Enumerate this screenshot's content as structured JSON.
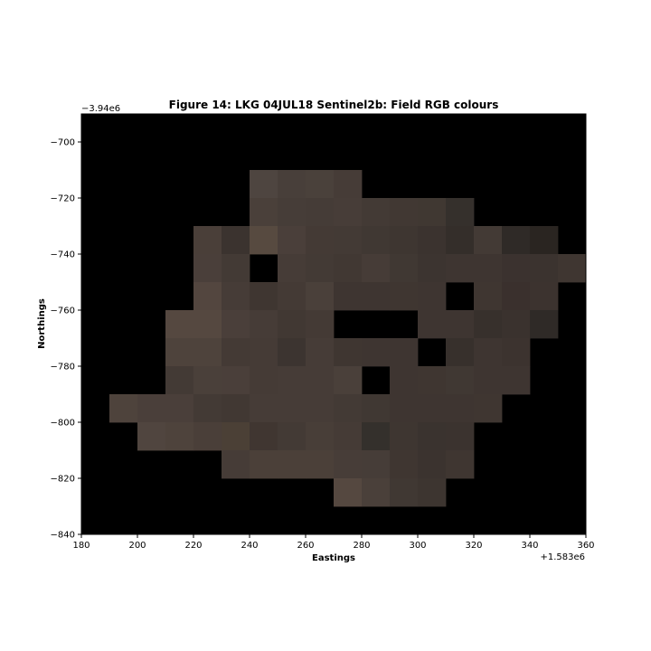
{
  "chart_data": {
    "type": "heatmap",
    "title": "Figure 14: LKG 04JUL18  Sentinel2b: Field RGB colours",
    "xlabel": "Eastings",
    "ylabel": "Northings",
    "x_offset_label": "+1.583e6",
    "y_offset_label": "−3.94e6",
    "xlim": [
      180,
      360
    ],
    "ylim": [
      -840,
      -690
    ],
    "xticks": [
      180,
      200,
      220,
      240,
      260,
      280,
      300,
      320,
      340,
      360
    ],
    "xtick_labels": [
      "180",
      "200",
      "220",
      "240",
      "260",
      "280",
      "300",
      "320",
      "340",
      "360"
    ],
    "yticks": [
      -700,
      -720,
      -740,
      -760,
      -780,
      -800,
      -820,
      -840
    ],
    "ytick_labels": [
      "−700",
      "−720",
      "−740",
      "−760",
      "−780",
      "−800",
      "−820",
      "−840"
    ],
    "cell_size": 10,
    "background_color": "#000000",
    "rows": [
      {
        "north": -710,
        "start": 240,
        "colors": [
          "#4e4540",
          "#483f3a",
          "#4a413b",
          "#463c37"
        ]
      },
      {
        "north": -720,
        "start": 240,
        "colors": [
          "#4a403a",
          "#463d38",
          "#453c37",
          "#473d38",
          "#433a35",
          "#413833",
          "#403832",
          "#35302c"
        ]
      },
      {
        "north": -730,
        "start": 220,
        "colors": [
          "#4a3f39",
          "#3b332f",
          "#574a40",
          "#4a3f3a",
          "#443a35",
          "#433a35",
          "#403833",
          "#3e3631",
          "#3b332f",
          "#342e2a",
          "#433a35",
          "#2f2a27",
          "#2a2521"
        ]
      },
      {
        "north": -740,
        "start": 220,
        "colors": [
          "#4a3f3a",
          "#433a35",
          null,
          "#463c37",
          "#433a35",
          "#413833",
          "#463c37",
          "#403833",
          "#3c3430",
          "#3e3531",
          "#3e3531",
          "#3b322f",
          "#3b332f",
          "#3f3631"
        ]
      },
      {
        "north": -750,
        "start": 220,
        "colors": [
          "#53463f",
          "#463c37",
          "#3f3631",
          "#443a35",
          "#4a403a",
          "#3e3531",
          "#3e3531",
          "#3f3631",
          "#3e3531",
          null,
          "#3f3631",
          "#3a302d",
          "#3c332f"
        ]
      },
      {
        "north": -760,
        "start": 210,
        "colors": [
          "#554840",
          "#554840",
          "#4a3f3a",
          "#463c37",
          "#413833",
          "#443a35",
          null,
          null,
          null,
          "#3e3531",
          "#3e3531",
          "#37302c",
          "#3a322e",
          "#2f2a27"
        ]
      },
      {
        "north": -770,
        "start": 210,
        "colors": [
          "#4e433c",
          "#4e433c",
          "#443a35",
          "#453b36",
          "#3c3430",
          "#463c37",
          "#3f3631",
          "#3e3531",
          "#3e3531",
          null,
          "#37302c",
          "#3e3531",
          "#3c332f"
        ]
      },
      {
        "north": -780,
        "start": 210,
        "colors": [
          "#433a35",
          "#4a403a",
          "#4a3f3a",
          "#453b36",
          "#463c37",
          "#463c37",
          "#4a403a",
          null,
          "#3e3531",
          "#3f3631",
          "#403833",
          "#3e3531",
          "#3e3531"
        ]
      },
      {
        "north": -790,
        "start": 190,
        "colors": [
          "#4e433c",
          "#4a3f3a",
          "#4a3f3a",
          "#433a35",
          "#413833",
          "#463c37",
          "#463c37",
          "#463c37",
          "#433a35",
          "#403833",
          "#3e3531",
          "#3e3531",
          "#3e3531",
          "#3f3631"
        ]
      },
      {
        "north": -800,
        "start": 200,
        "colors": [
          "#50453f",
          "#4e433c",
          "#4a3f39",
          "#4b4036",
          "#403631",
          "#433a35",
          "#483e38",
          "#453b36",
          "#34302c",
          "#3e3631",
          "#3a332f",
          "#3b332f"
        ]
      },
      {
        "north": -810,
        "start": 230,
        "colors": [
          "#463c37",
          "#4b4039",
          "#4b4039",
          "#4b4039",
          "#473d38",
          "#463d38",
          "#3f3631",
          "#3b332f",
          "#3f3631"
        ]
      },
      {
        "north": -820,
        "start": 270,
        "colors": [
          "#554840",
          "#4a403a",
          "#403833",
          "#3d3530"
        ]
      }
    ]
  }
}
